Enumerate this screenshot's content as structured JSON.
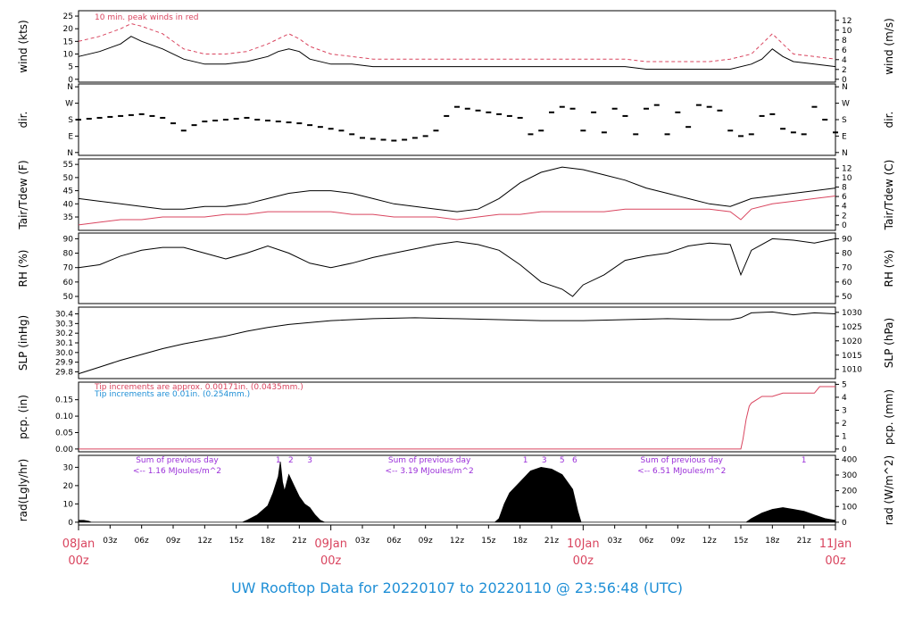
{
  "title": "UW Rooftop Data for 20220107  to  20220110 @ 23:56:48  (UTC)",
  "colors": {
    "series": "#000000",
    "peak": "#d9455f",
    "dewpoint": "#d9455f",
    "day": "#d9455f",
    "info": "#1f8fd6",
    "summary": "#9b30d9"
  },
  "x_axis": {
    "tick_labels": [
      "03z",
      "06z",
      "09z",
      "12z",
      "15z",
      "18z",
      "21z",
      "03z",
      "06z",
      "09z",
      "12z",
      "15z",
      "18z",
      "21z",
      "03z",
      "06z",
      "09z",
      "12z",
      "15z",
      "18z",
      "21z"
    ],
    "tick_hours": [
      3,
      6,
      9,
      12,
      15,
      18,
      21,
      27,
      30,
      33,
      36,
      39,
      42,
      45,
      51,
      54,
      57,
      60,
      63,
      66,
      69
    ],
    "day_labels": [
      {
        "hour": 0,
        "line1": "08Jan",
        "line2": "00z"
      },
      {
        "hour": 24,
        "line1": "09Jan",
        "line2": "00z"
      },
      {
        "hour": 48,
        "line1": "10Jan",
        "line2": "00z"
      },
      {
        "hour": 72,
        "line1": "11Jan",
        "line2": "00z"
      }
    ],
    "range_hours": [
      0,
      72
    ]
  },
  "chart_data": [
    {
      "type": "line",
      "panel": "wind",
      "ylabel_left": "wind (kts)",
      "ylabel_right": "wind (m/s)",
      "yticks_left": [
        0,
        5,
        10,
        15,
        20,
        25
      ],
      "yticks_right": [
        0,
        2,
        4,
        6,
        8,
        10,
        12
      ],
      "ylim": [
        0,
        26
      ],
      "annotation": "10 min. peak winds in red",
      "series": [
        {
          "name": "wind speed",
          "x": [
            0,
            2,
            4,
            5,
            6,
            8,
            10,
            12,
            14,
            16,
            18,
            19,
            20,
            21,
            22,
            24,
            26,
            28,
            30,
            32,
            34,
            36,
            38,
            40,
            42,
            44,
            46,
            48,
            50,
            52,
            54,
            56,
            58,
            60,
            62,
            64,
            65,
            66,
            67,
            68,
            70,
            72
          ],
          "values": [
            9,
            11,
            14,
            17,
            15,
            12,
            8,
            6,
            6,
            7,
            9,
            11,
            12,
            11,
            8,
            6,
            6,
            5,
            5,
            5,
            5,
            5,
            5,
            5,
            5,
            5,
            5,
            5,
            5,
            5,
            4,
            4,
            4,
            4,
            4,
            6,
            8,
            12,
            9,
            7,
            6,
            5
          ]
        },
        {
          "x": [
            0,
            2,
            4,
            5,
            6,
            8,
            10,
            12,
            14,
            16,
            18,
            19,
            20,
            21,
            22,
            24,
            26,
            28,
            30,
            32,
            34,
            36,
            38,
            40,
            42,
            44,
            46,
            48,
            50,
            52,
            54,
            56,
            58,
            60,
            62,
            64,
            65,
            66,
            67,
            68,
            70,
            72
          ],
          "values": [
            15,
            17,
            20,
            22,
            21,
            18,
            12,
            10,
            10,
            11,
            14,
            16,
            18,
            16,
            13,
            10,
            9,
            8,
            8,
            8,
            8,
            8,
            8,
            8,
            8,
            8,
            8,
            8,
            8,
            8,
            7,
            7,
            7,
            7,
            8,
            10,
            14,
            18,
            14,
            10,
            9,
            8
          ]
        }
      ]
    },
    {
      "type": "scatter",
      "panel": "dir",
      "ylabel_left": "dir.",
      "ylabel_right": "dir.",
      "ytick_labels": [
        "N",
        "E",
        "S",
        "W",
        "N"
      ],
      "yticks": [
        0,
        90,
        180,
        270,
        360
      ],
      "ylim": [
        0,
        360
      ],
      "series": [
        {
          "x": [
            0,
            1,
            2,
            3,
            4,
            5,
            6,
            7,
            8,
            9,
            10,
            11,
            12,
            13,
            14,
            15,
            16,
            17,
            18,
            19,
            20,
            21,
            22,
            23,
            24,
            25,
            26,
            27,
            28,
            29,
            30,
            31,
            32,
            33,
            34,
            35,
            36,
            37,
            38,
            39,
            40,
            41,
            42,
            43,
            44,
            45,
            46,
            47,
            48,
            49,
            50,
            51,
            52,
            53,
            54,
            55,
            56,
            57,
            58,
            59,
            60,
            61,
            62,
            63,
            64,
            65,
            66,
            67,
            68,
            69,
            70,
            71,
            72
          ],
          "values": [
            180,
            185,
            190,
            195,
            200,
            205,
            210,
            200,
            190,
            160,
            120,
            150,
            170,
            175,
            180,
            185,
            190,
            180,
            175,
            170,
            165,
            160,
            150,
            140,
            130,
            120,
            100,
            80,
            75,
            70,
            65,
            70,
            80,
            90,
            120,
            200,
            250,
            240,
            230,
            220,
            210,
            200,
            190,
            100,
            120,
            220,
            250,
            240,
            120,
            220,
            110,
            240,
            200,
            100,
            240,
            260,
            100,
            220,
            140,
            260,
            250,
            230,
            120,
            90,
            100,
            200,
            210,
            130,
            110,
            100,
            250,
            180,
            110
          ]
        }
      ]
    },
    {
      "type": "line",
      "panel": "temperature",
      "ylabel_left": "Tair/Tdew (F)",
      "ylabel_right": "Tair/Tdew (C)",
      "yticks_left": [
        35,
        40,
        45,
        50,
        55
      ],
      "yticks_right": [
        0,
        2,
        4,
        6,
        8,
        10,
        12
      ],
      "ylim": [
        31,
        56
      ],
      "series": [
        {
          "name": "Tair",
          "x": [
            0,
            2,
            4,
            6,
            8,
            10,
            12,
            14,
            16,
            18,
            20,
            22,
            24,
            26,
            28,
            30,
            32,
            34,
            36,
            38,
            40,
            42,
            44,
            46,
            48,
            50,
            52,
            54,
            56,
            58,
            60,
            62,
            64,
            66,
            68,
            70,
            72
          ],
          "values": [
            42,
            41,
            40,
            39,
            38,
            38,
            39,
            39,
            40,
            42,
            44,
            45,
            45,
            44,
            42,
            40,
            39,
            38,
            37,
            38,
            42,
            48,
            52,
            54,
            53,
            51,
            49,
            46,
            44,
            42,
            40,
            39,
            42,
            43,
            44,
            45,
            46
          ]
        },
        {
          "name": "Tdew",
          "x": [
            0,
            2,
            4,
            6,
            8,
            10,
            12,
            14,
            16,
            18,
            20,
            22,
            24,
            26,
            28,
            30,
            32,
            34,
            36,
            38,
            40,
            42,
            44,
            46,
            48,
            50,
            52,
            54,
            56,
            58,
            60,
            62,
            63,
            64,
            66,
            68,
            70,
            72
          ],
          "values": [
            32,
            33,
            34,
            34,
            35,
            35,
            35,
            36,
            36,
            37,
            37,
            37,
            37,
            36,
            36,
            35,
            35,
            35,
            34,
            35,
            36,
            36,
            37,
            37,
            37,
            37,
            38,
            38,
            38,
            38,
            38,
            37,
            34,
            38,
            40,
            41,
            42,
            43
          ]
        }
      ]
    },
    {
      "type": "line",
      "panel": "rh",
      "ylabel_left": "RH (%)",
      "ylabel_right": "RH (%)",
      "yticks": [
        50,
        60,
        70,
        80,
        90
      ],
      "ylim": [
        47,
        92
      ],
      "series": [
        {
          "name": "RH",
          "x": [
            0,
            2,
            4,
            6,
            8,
            10,
            12,
            14,
            16,
            18,
            20,
            22,
            24,
            26,
            28,
            30,
            32,
            34,
            36,
            38,
            40,
            42,
            44,
            46,
            47,
            48,
            50,
            52,
            54,
            56,
            58,
            60,
            62,
            63,
            64,
            66,
            68,
            70,
            72
          ],
          "values": [
            70,
            72,
            78,
            82,
            84,
            84,
            80,
            76,
            80,
            85,
            80,
            73,
            70,
            73,
            77,
            80,
            83,
            86,
            88,
            86,
            82,
            72,
            60,
            55,
            50,
            58,
            65,
            75,
            78,
            80,
            85,
            87,
            86,
            65,
            82,
            90,
            89,
            87,
            90
          ]
        }
      ]
    },
    {
      "type": "line",
      "panel": "slp",
      "ylabel_left": "SLP (inHg)",
      "ylabel_right": "SLP (hPa)",
      "yticks_left": [
        29.8,
        29.9,
        30.0,
        30.1,
        30.2,
        30.3,
        30.4
      ],
      "yticks_right": [
        1010,
        1015,
        1020,
        1025,
        1030
      ],
      "ytick_labels_left": [
        "29.8",
        "29.9",
        "30.0",
        "30.1",
        "30.2",
        "30.3",
        "30.4"
      ],
      "ylim": [
        29.76,
        30.44
      ],
      "series": [
        {
          "name": "SLP",
          "x": [
            0,
            2,
            4,
            6,
            8,
            10,
            12,
            14,
            16,
            18,
            20,
            22,
            24,
            28,
            32,
            36,
            40,
            44,
            48,
            52,
            56,
            60,
            62,
            63,
            64,
            66,
            68,
            70,
            72
          ],
          "values": [
            29.78,
            29.85,
            29.92,
            29.98,
            30.04,
            30.09,
            30.13,
            30.17,
            30.22,
            30.26,
            30.29,
            30.31,
            30.33,
            30.35,
            30.36,
            30.35,
            30.34,
            30.33,
            30.33,
            30.34,
            30.35,
            30.34,
            30.34,
            30.36,
            30.41,
            30.42,
            30.39,
            30.41,
            30.4
          ]
        }
      ]
    },
    {
      "type": "line",
      "panel": "pcp",
      "ylabel_left": "pcp. (in)",
      "ylabel_right": "pcp. (mm)",
      "yticks_left": [
        0,
        0.05,
        0.1,
        0.15
      ],
      "ytick_labels_left": [
        "0.00",
        "0.05",
        "0.10",
        "0.15"
      ],
      "yticks_right": [
        0,
        1,
        2,
        3,
        4,
        5
      ],
      "ylim": [
        0,
        0.195
      ],
      "notes": [
        "Tip increments are approx. 0.00171in. (0.0435mm.)",
        "Tip increments are 0.01in. (0.254mm.)"
      ],
      "series": [
        {
          "x": [
            0,
            63,
            63.2,
            63.5,
            63.8,
            64,
            64.5,
            65,
            66,
            67,
            68,
            69,
            70,
            70.5,
            72
          ],
          "values": [
            0,
            0,
            0.03,
            0.09,
            0.13,
            0.14,
            0.15,
            0.16,
            0.16,
            0.17,
            0.17,
            0.17,
            0.17,
            0.19,
            0.19
          ]
        }
      ]
    },
    {
      "type": "area",
      "panel": "rad",
      "ylabel_left": "rad(Lgly/hr)",
      "ylabel_right": "rad (W/m^2)",
      "yticks_left": [
        0,
        10,
        20,
        30
      ],
      "yticks_right": [
        0,
        100,
        200,
        300,
        400
      ],
      "ylim": [
        0,
        35
      ],
      "day_summaries": [
        {
          "hour": 7,
          "line1": "Sum of previous day",
          "line2": "<-- 1.16 MJoules/m^2"
        },
        {
          "hour": 31,
          "line1": "Sum of previous day",
          "line2": "<-- 3.19 MJoules/m^2"
        },
        {
          "hour": 55,
          "line1": "Sum of previous day",
          "line2": "<-- 6.51 MJoules/m^2"
        }
      ],
      "markers": [
        {
          "hour": 19.0,
          "label": "1"
        },
        {
          "hour": 20.2,
          "label": "2"
        },
        {
          "hour": 22.0,
          "label": "3"
        },
        {
          "hour": 42.5,
          "label": "1"
        },
        {
          "hour": 44.3,
          "label": "3"
        },
        {
          "hour": 46.0,
          "label": "5"
        },
        {
          "hour": 47.2,
          "label": "6"
        },
        {
          "hour": 69.0,
          "label": "1"
        }
      ],
      "series": [
        {
          "name": "radiation",
          "x": [
            0,
            0.5,
            1,
            1.2,
            15.6,
            16,
            17,
            18,
            18.5,
            19,
            19.2,
            19.4,
            19.6,
            20,
            20.5,
            21,
            21.5,
            22,
            22.5,
            23,
            23.4,
            39.6,
            40,
            40.5,
            41,
            42,
            43,
            44,
            45,
            46,
            47,
            47.5,
            47.8,
            63.5,
            64,
            65,
            66,
            67,
            68,
            69,
            70,
            71,
            72
          ],
          "values": [
            1,
            1,
            0.5,
            0,
            0,
            1,
            4,
            9,
            16,
            25,
            33,
            22,
            17,
            26,
            20,
            14,
            10,
            8,
            4,
            1,
            0,
            0,
            2,
            10,
            16,
            22,
            28,
            30,
            29,
            26,
            18,
            6,
            0,
            0,
            2,
            5,
            7,
            8,
            7,
            6,
            4,
            2,
            1
          ]
        }
      ]
    }
  ]
}
